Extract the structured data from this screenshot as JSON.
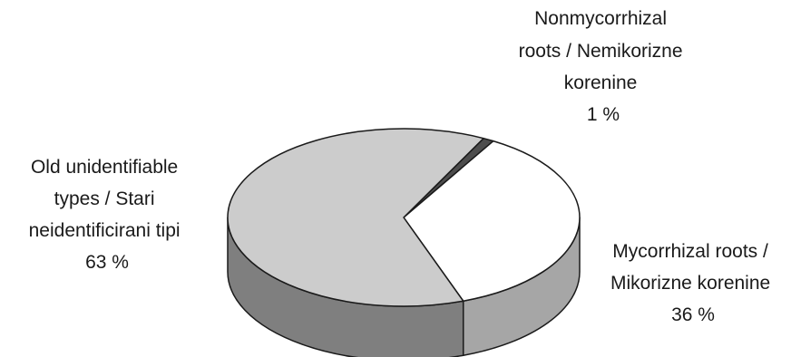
{
  "chart_data": {
    "type": "pie",
    "title": "",
    "slices": [
      {
        "lines": [
          "Nonmycorrhizal",
          "roots / Nemikorizne",
          "korenine"
        ],
        "value_label": "1 %",
        "value": 1,
        "top_color": "#4d4d4d",
        "side_color": "#3a3a3a"
      },
      {
        "lines": [
          "Mycorrhizal roots /",
          "Mikorizne korenine"
        ],
        "value_label": "36 %",
        "value": 36,
        "top_color": "#ffffff",
        "side_color": "#a6a6a6"
      },
      {
        "lines": [
          "Old unidentifiable",
          "types / Stari",
          "neidentificirani tipi"
        ],
        "value_label": "63 %",
        "value": 63,
        "top_color": "#cccccc",
        "side_color": "#7f7f7f"
      }
    ],
    "stroke_color": "#1a1a1a"
  }
}
